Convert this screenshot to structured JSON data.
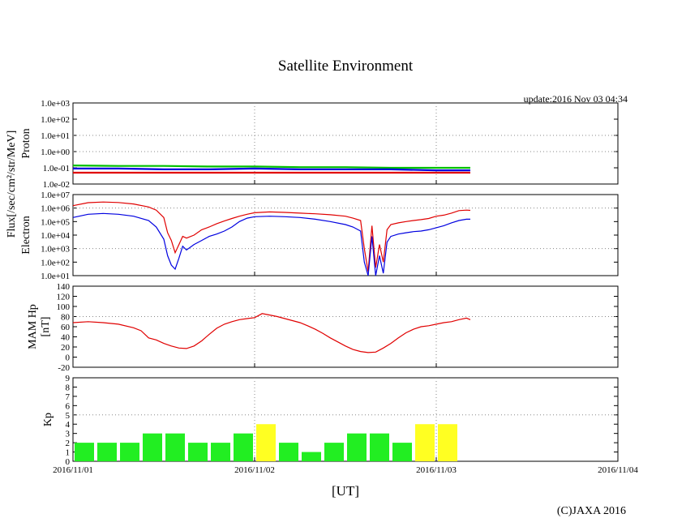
{
  "title": "Satellite Environment",
  "update_text": "update:2016 Nov 03 04:34",
  "copyright": "(C)JAXA 2016",
  "xlabel": "[UT]",
  "ylabel_shared": "Flux[/sec/cm²/str/MeV]",
  "colors": {
    "red": "#e00000",
    "blue": "#0000e0",
    "green": "#00c000",
    "kp_green": "#22ee22",
    "kp_yellow": "#ffff22",
    "grid": "#888888"
  },
  "chart_data": [
    {
      "id": "proton",
      "type": "line",
      "ylabel": "Proton",
      "yscale": "log",
      "ylim": [
        0.01,
        1000
      ],
      "yticks": [
        "1.0e-02",
        "1.0e-01",
        "1.0e+00",
        "1.0e+01",
        "1.0e+02",
        "1.0e+03"
      ],
      "ytick_values": [
        0.01,
        0.1,
        1,
        10,
        100,
        1000
      ],
      "xlim_hours": [
        0,
        72
      ],
      "series": [
        {
          "name": "green",
          "color": "green",
          "x": [
            0,
            6,
            12,
            18,
            24,
            30,
            36,
            42,
            48,
            52.5
          ],
          "y": [
            0.14,
            0.13,
            0.13,
            0.12,
            0.12,
            0.11,
            0.11,
            0.1,
            0.1,
            0.1
          ]
        },
        {
          "name": "blue",
          "color": "blue",
          "x": [
            0,
            6,
            12,
            18,
            24,
            30,
            36,
            42,
            48,
            52.5
          ],
          "y": [
            0.09,
            0.09,
            0.08,
            0.08,
            0.09,
            0.08,
            0.08,
            0.08,
            0.07,
            0.07
          ]
        },
        {
          "name": "red",
          "color": "red",
          "x": [
            0,
            6,
            12,
            18,
            24,
            30,
            36,
            42,
            48,
            52.5
          ],
          "y": [
            0.05,
            0.05,
            0.05,
            0.05,
            0.05,
            0.05,
            0.05,
            0.05,
            0.05,
            0.05
          ]
        }
      ]
    },
    {
      "id": "electron",
      "type": "line",
      "ylabel": "Electron",
      "yscale": "log",
      "ylim": [
        10,
        10000000
      ],
      "yticks": [
        "1.0e+01",
        "1.0e+02",
        "1.0e+03",
        "1.0e+04",
        "1.0e+05",
        "1.0e+06",
        "1.0e+07"
      ],
      "ytick_values": [
        10,
        100,
        1000,
        10000,
        100000,
        1000000,
        10000000
      ],
      "xlim_hours": [
        0,
        72
      ],
      "series": [
        {
          "name": "red",
          "color": "red",
          "x": [
            0,
            2,
            4,
            6,
            8,
            10,
            11,
            12,
            12.5,
            13,
            13.5,
            14,
            14.5,
            15,
            16,
            17,
            18,
            19,
            20,
            21,
            22,
            23,
            24,
            26,
            28,
            30,
            32,
            34,
            36,
            37,
            38,
            38.5,
            39,
            39.5,
            40,
            40.5,
            41,
            41.5,
            42,
            43,
            44,
            45,
            46,
            47,
            48,
            49,
            50,
            51,
            52,
            52.5
          ],
          "y": [
            1500000,
            2500000,
            2800000,
            2600000,
            2000000,
            1200000,
            700000,
            200000,
            15000,
            4000,
            500,
            2000,
            8000,
            6000,
            10000,
            25000,
            40000,
            70000,
            110000,
            170000,
            250000,
            350000,
            450000,
            520000,
            480000,
            420000,
            380000,
            320000,
            250000,
            180000,
            120000,
            1000,
            20,
            50000,
            40,
            2000,
            100,
            25000,
            60000,
            80000,
            100000,
            120000,
            140000,
            170000,
            250000,
            300000,
            420000,
            650000,
            700000,
            680000
          ]
        },
        {
          "name": "blue",
          "color": "blue",
          "x": [
            0,
            2,
            4,
            6,
            8,
            10,
            11,
            12,
            12.5,
            13,
            13.5,
            14,
            14.5,
            15,
            16,
            17,
            18,
            19,
            20,
            21,
            22,
            23,
            24,
            26,
            28,
            30,
            32,
            34,
            36,
            37,
            38,
            38.5,
            39,
            39.5,
            40,
            40.5,
            41,
            41.5,
            42,
            43,
            44,
            45,
            46,
            47,
            48,
            49,
            50,
            51,
            52,
            52.5
          ],
          "y": [
            200000,
            350000,
            400000,
            350000,
            250000,
            120000,
            40000,
            5000,
            300,
            60,
            30,
            200,
            1500,
            800,
            2000,
            4000,
            8000,
            12000,
            20000,
            40000,
            100000,
            180000,
            230000,
            250000,
            230000,
            200000,
            150000,
            100000,
            60000,
            40000,
            20000,
            100,
            10,
            8000,
            10,
            300,
            15,
            3000,
            8000,
            12000,
            15000,
            18000,
            20000,
            25000,
            35000,
            50000,
            80000,
            120000,
            150000,
            150000
          ]
        }
      ]
    },
    {
      "id": "mam",
      "type": "line",
      "ylabel": "MAM Hp",
      "ylabel2": "[nT]",
      "yscale": "linear",
      "ylim": [
        -20,
        140
      ],
      "yticks": [
        "-20",
        "0",
        "20",
        "40",
        "60",
        "80",
        "100",
        "120",
        "140"
      ],
      "ytick_values": [
        -20,
        0,
        20,
        40,
        60,
        80,
        100,
        120,
        140
      ],
      "xlim_hours": [
        0,
        72
      ],
      "series": [
        {
          "name": "Hp",
          "color": "red",
          "x": [
            0,
            2,
            4,
            6,
            8,
            9,
            10,
            11,
            12,
            13,
            14,
            15,
            16,
            17,
            18,
            19,
            20,
            21,
            22,
            23,
            24,
            24.5,
            25,
            26,
            27,
            28,
            29,
            30,
            31,
            32,
            33,
            34,
            35,
            36,
            37,
            38,
            39,
            40,
            41,
            42,
            43,
            44,
            45,
            46,
            47,
            48,
            49,
            50,
            51,
            52,
            52.5
          ],
          "y": [
            68,
            70,
            68,
            65,
            58,
            52,
            38,
            34,
            27,
            22,
            18,
            17,
            22,
            32,
            45,
            57,
            65,
            70,
            74,
            76,
            78,
            82,
            86,
            83,
            80,
            76,
            72,
            68,
            62,
            55,
            47,
            38,
            30,
            22,
            15,
            11,
            9,
            10,
            18,
            27,
            38,
            48,
            55,
            60,
            62,
            65,
            68,
            70,
            74,
            77,
            74
          ]
        }
      ]
    },
    {
      "id": "kp",
      "type": "bar",
      "ylabel": "Kp",
      "yscale": "linear",
      "ylim": [
        0,
        9
      ],
      "yticks": [
        "0",
        "1",
        "2",
        "3",
        "4",
        "5",
        "6",
        "7",
        "8",
        "9"
      ],
      "ytick_values": [
        0,
        1,
        2,
        3,
        4,
        5,
        6,
        7,
        8,
        9
      ],
      "xlim_hours": [
        0,
        72
      ],
      "bar_width_hours": 3,
      "values": [
        2,
        2,
        2,
        3,
        3,
        2,
        2,
        3,
        4,
        2,
        1,
        2,
        3,
        3,
        2,
        4,
        4
      ],
      "colors": [
        "green",
        "green",
        "green",
        "green",
        "green",
        "green",
        "green",
        "green",
        "yellow",
        "green",
        "green",
        "green",
        "green",
        "green",
        "green",
        "yellow",
        "yellow"
      ]
    }
  ],
  "x_tick_labels": [
    "2016/11/01",
    "2016/11/02",
    "2016/11/03",
    "2016/11/04"
  ],
  "x_tick_hours": [
    0,
    24,
    48,
    72
  ]
}
